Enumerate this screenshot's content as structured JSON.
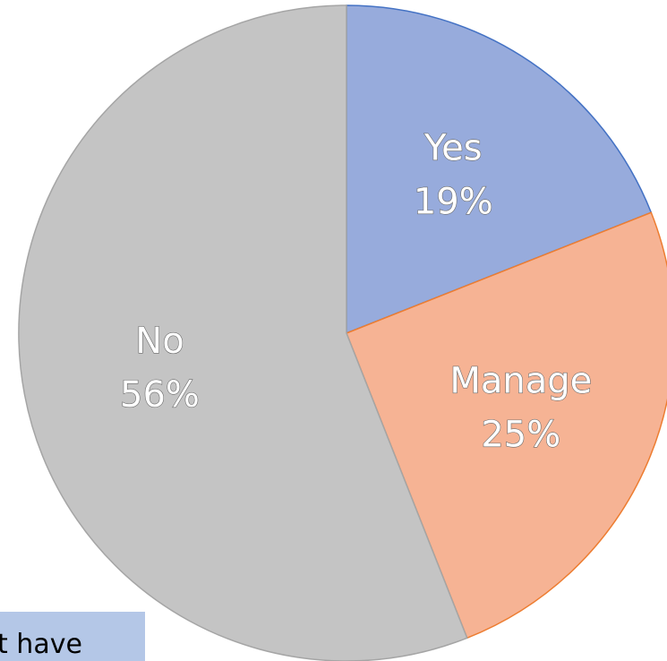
{
  "chart_data": {
    "type": "pie",
    "categories": [
      "Yes",
      "Manage",
      "No"
    ],
    "values": [
      19,
      25,
      56
    ],
    "value_labels": [
      "19%",
      "25%",
      "56%"
    ],
    "colors": [
      "#97abdc",
      "#f6b394",
      "#c4c4c4"
    ],
    "edge_colors": [
      "#4472c4",
      "#ed7d31",
      "#a5a5a5"
    ],
    "annotation": "t have"
  }
}
